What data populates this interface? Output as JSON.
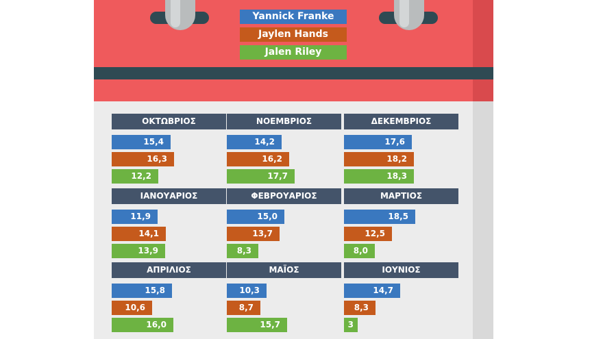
{
  "colors": {
    "calendar_red": "#ef5a5c",
    "calendar_stripe": "#2f4a53",
    "calendar_body": "#ececec",
    "month_header": "#44546a"
  },
  "legend": [
    {
      "label": "Yannick Franke",
      "color": "#3a78bf"
    },
    {
      "label": "Jaylen Hands",
      "color": "#c55a1c"
    },
    {
      "label": "Jalen Riley",
      "color": "#6db342"
    }
  ],
  "chart_data": {
    "type": "bar",
    "series": [
      {
        "name": "Yannick Franke",
        "color": "#3a78bf"
      },
      {
        "name": "Jaylen Hands",
        "color": "#c55a1c"
      },
      {
        "name": "Jalen Riley",
        "color": "#6db342"
      }
    ],
    "months": [
      {
        "name": "ΟΚΤΩΒΡΙΟΣ",
        "values": [
          15.4,
          16.3,
          12.2
        ],
        "labels": [
          "15,4",
          "16,3",
          "12,2"
        ]
      },
      {
        "name": "ΝΟΕΜΒΡΙΟΣ",
        "values": [
          14.2,
          16.2,
          17.7
        ],
        "labels": [
          "14,2",
          "16,2",
          "17,7"
        ]
      },
      {
        "name": "ΔΕΚΕΜΒΡΙΟΣ",
        "values": [
          17.6,
          18.2,
          18.3
        ],
        "labels": [
          "17,6",
          "18,2",
          "18,3"
        ]
      },
      {
        "name": "ΙΑΝΟΥΑΡΙΟΣ",
        "values": [
          11.9,
          14.1,
          13.9
        ],
        "labels": [
          "11,9",
          "14,1",
          "13,9"
        ]
      },
      {
        "name": "ΦΕΒΡΟΥΑΡΙΟΣ",
        "values": [
          15.0,
          13.7,
          8.3
        ],
        "labels": [
          "15,0",
          "13,7",
          "8,3"
        ]
      },
      {
        "name": "ΜΑΡΤΙΟΣ",
        "values": [
          18.5,
          12.5,
          8.0
        ],
        "labels": [
          "18,5",
          "12,5",
          "8,0"
        ]
      },
      {
        "name": "ΑΠΡΙΛΙΟΣ",
        "values": [
          15.8,
          10.6,
          16.0
        ],
        "labels": [
          "15,8",
          "10,6",
          "16,0"
        ]
      },
      {
        "name": "ΜΑΪΟΣ",
        "values": [
          10.3,
          8.7,
          15.7
        ],
        "labels": [
          "10,3",
          "8,7",
          "15,7"
        ]
      },
      {
        "name": "ΙΟΥΝΙΟΣ",
        "values": [
          14.7,
          8.3,
          3
        ],
        "labels": [
          "14,7",
          "8,3",
          "3"
        ]
      }
    ]
  }
}
